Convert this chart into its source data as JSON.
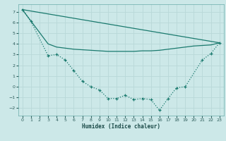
{
  "xlabel": "Humidex (Indice chaleur)",
  "bg_color": "#cce8e8",
  "grid_color": "#b8d8d8",
  "line_color": "#1a7a6e",
  "xlim": [
    -0.5,
    23.5
  ],
  "ylim": [
    -2.7,
    7.7
  ],
  "xticks": [
    0,
    1,
    2,
    3,
    4,
    5,
    6,
    7,
    8,
    9,
    10,
    11,
    12,
    13,
    14,
    15,
    16,
    17,
    18,
    19,
    20,
    21,
    22,
    23
  ],
  "yticks": [
    -2,
    -1,
    0,
    1,
    2,
    3,
    4,
    5,
    6,
    7
  ],
  "line1_x": [
    0,
    1,
    3,
    4,
    5,
    6,
    7,
    8,
    9,
    10,
    11,
    12,
    13,
    14,
    15,
    16,
    17,
    18,
    19,
    21,
    22,
    23
  ],
  "line1_y": [
    7.2,
    6.1,
    2.9,
    3.0,
    2.5,
    1.5,
    0.5,
    0.0,
    -0.3,
    -1.1,
    -1.1,
    -0.8,
    -1.2,
    -1.1,
    -1.2,
    -2.2,
    -1.1,
    -0.1,
    0.0,
    2.5,
    3.1,
    4.1
  ],
  "line2_x": [
    0,
    23
  ],
  "line2_y": [
    7.2,
    4.1
  ],
  "line3_x": [
    0,
    3,
    4,
    5,
    6,
    7,
    8,
    9,
    10,
    11,
    12,
    13,
    14,
    15,
    16,
    17,
    18,
    19,
    20,
    21,
    22,
    23
  ],
  "line3_y": [
    7.2,
    4.0,
    3.7,
    3.6,
    3.5,
    3.45,
    3.4,
    3.35,
    3.3,
    3.3,
    3.3,
    3.3,
    3.35,
    3.35,
    3.4,
    3.5,
    3.6,
    3.7,
    3.8,
    3.85,
    3.9,
    4.1
  ],
  "marker_x": [
    0,
    1,
    3,
    4,
    5,
    6,
    7,
    8,
    9,
    10,
    11,
    12,
    13,
    14,
    15,
    16,
    17,
    18,
    19,
    21,
    22,
    23
  ],
  "marker_y": [
    7.2,
    6.1,
    2.9,
    3.0,
    2.5,
    1.5,
    0.5,
    0.0,
    -0.3,
    -1.1,
    -1.1,
    -0.8,
    -1.2,
    -1.1,
    -1.2,
    -2.2,
    -1.1,
    -0.1,
    0.0,
    2.5,
    3.1,
    4.1
  ]
}
